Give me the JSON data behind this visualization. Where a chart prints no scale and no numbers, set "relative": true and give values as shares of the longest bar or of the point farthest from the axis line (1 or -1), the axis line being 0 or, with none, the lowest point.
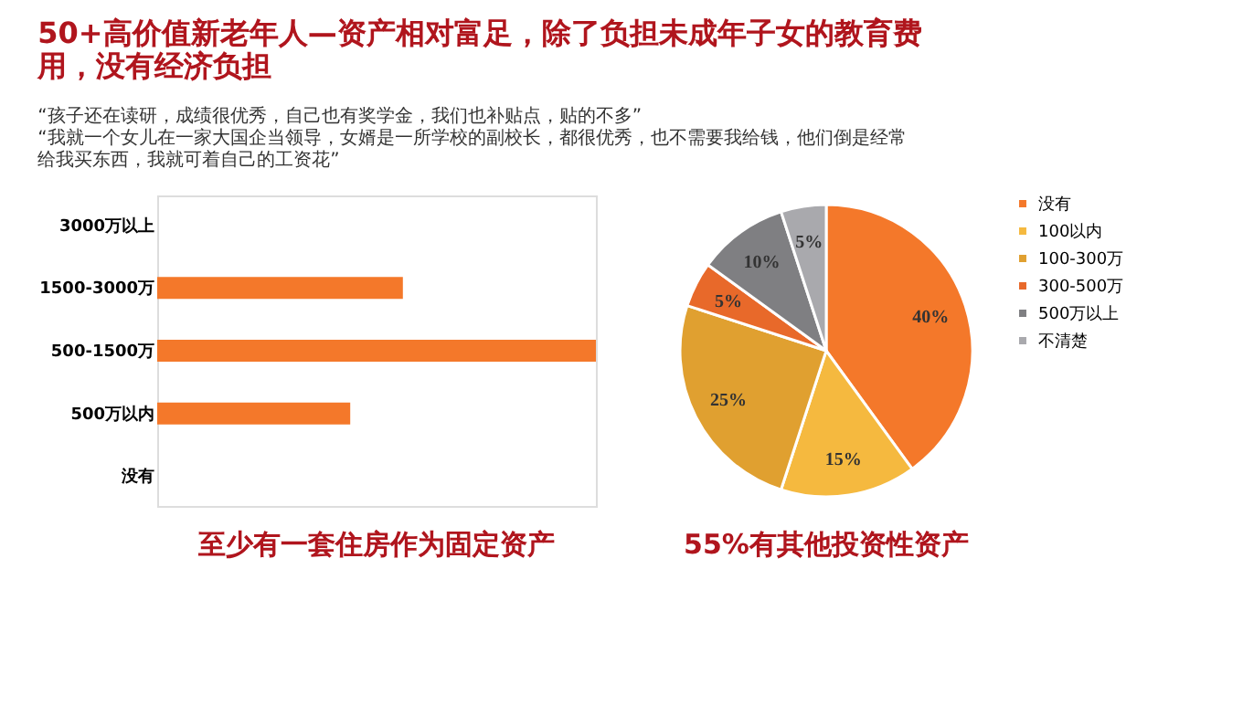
{
  "chart_data": [
    {
      "type": "bar",
      "orientation": "horizontal",
      "relative": true,
      "title": "50+高价值新老年人—资产相对富足，除了负担未成年子女的教育费用，没有经济负担",
      "subtitle": "“孩子还在读研，成绩很优秀，自己也有奖学金，我们也补贴点，贴的不多”\n“我就一个女儿在一家大国企当领导，女婿是一所学校的副校长，都很优秀，也不需要我给钱，他们倒是经常给我买东西，我就可着自己的工资花”",
      "categories": [
        "3000万以上",
        "1500-3000万",
        "500-1500万",
        "500万以内",
        "没有"
      ],
      "values": [
        0,
        0.56,
        1,
        0.44,
        0
      ],
      "color": "#f4782a",
      "annotations": [
        "至少有一套住房作为固定资产"
      ]
    },
    {
      "type": "pie",
      "categories": [
        "没有",
        "100以内",
        "100-300万",
        "300-500万",
        "500万以上",
        "不清楚"
      ],
      "values": [
        40,
        15,
        25,
        5,
        10,
        5
      ],
      "colors": [
        "#f4782a",
        "#f5b93f",
        "#e0a030",
        "#e8692a",
        "#7f7f82",
        "#a9a9ad"
      ],
      "value_labels": [
        "40%",
        "15%",
        "25%",
        "5%",
        "10%",
        "5%"
      ],
      "legend": "right",
      "annotations": [
        "55%有其他投资性资产"
      ]
    }
  ]
}
